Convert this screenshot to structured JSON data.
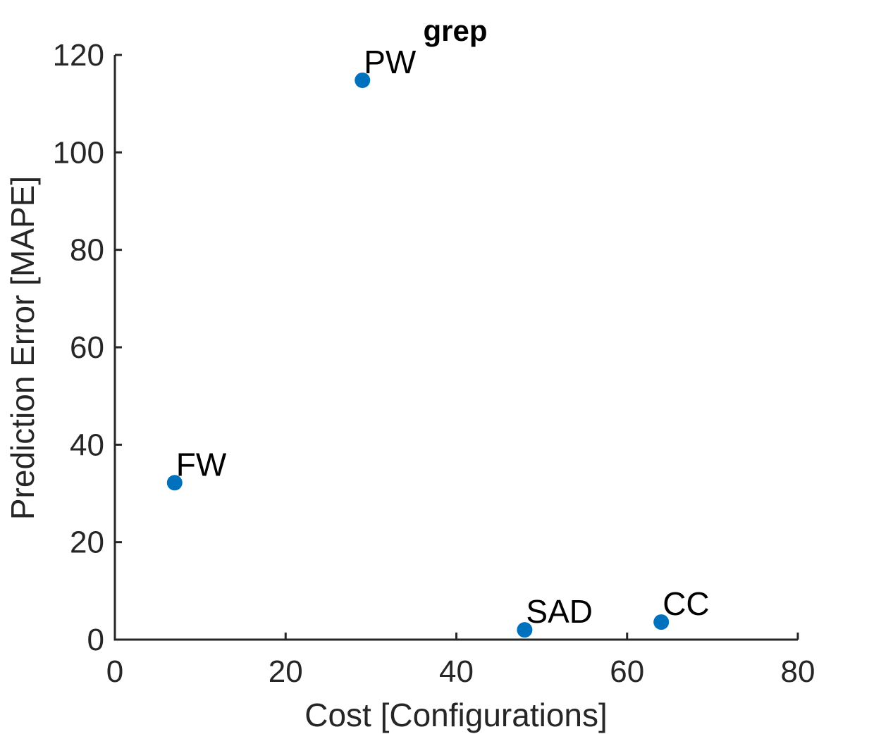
{
  "chart_data": {
    "type": "scatter",
    "title": "grep",
    "xlabel": "Cost [Configurations]",
    "ylabel": "Prediction Error [MAPE]",
    "xlim": [
      0,
      80
    ],
    "ylim": [
      0,
      120
    ],
    "xticks": [
      0,
      20,
      40,
      60,
      80
    ],
    "yticks": [
      0,
      20,
      40,
      60,
      80,
      100,
      120
    ],
    "grid": false,
    "marker_color": "#0072BD",
    "points": [
      {
        "label": "FW",
        "x": 7,
        "y": 32.2
      },
      {
        "label": "PW",
        "x": 29,
        "y": 114.8
      },
      {
        "label": "SAD",
        "x": 48,
        "y": 2
      },
      {
        "label": "CC",
        "x": 64,
        "y": 3.6
      }
    ]
  }
}
